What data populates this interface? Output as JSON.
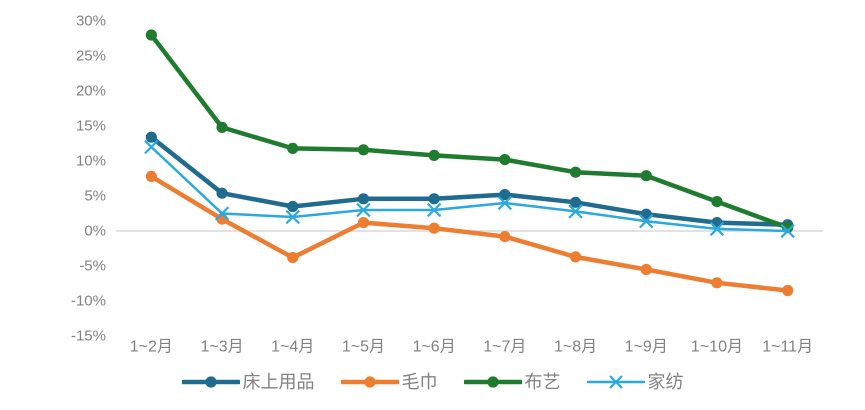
{
  "chart_data": {
    "type": "line",
    "title": "",
    "xlabel": "",
    "ylabel": "",
    "categories": [
      "1~2月",
      "1~3月",
      "1~4月",
      "1~5月",
      "1~6月",
      "1~7月",
      "1~8月",
      "1~9月",
      "1~10月",
      "1~11月"
    ],
    "series": [
      {
        "name": "床上用品",
        "color": "#1F6C8E",
        "marker": "circle",
        "line_width": 4.5,
        "values": [
          13.4,
          5.4,
          3.5,
          4.6,
          4.6,
          5.2,
          4.1,
          2.4,
          1.2,
          0.9
        ]
      },
      {
        "name": "毛巾",
        "color": "#ED7D31",
        "marker": "circle",
        "line_width": 4.5,
        "values": [
          7.8,
          1.7,
          -3.8,
          1.2,
          0.4,
          -0.8,
          -3.7,
          -5.5,
          -7.4,
          -8.5
        ]
      },
      {
        "name": "布艺",
        "color": "#1F7B2D",
        "marker": "circle",
        "line_width": 4.5,
        "values": [
          28.0,
          14.8,
          11.8,
          11.6,
          10.8,
          10.2,
          8.4,
          7.9,
          4.2,
          0.5
        ]
      },
      {
        "name": "家纺",
        "color": "#29A9E0",
        "marker": "x",
        "line_width": 2.5,
        "values": [
          12.0,
          2.5,
          2.0,
          3.0,
          3.0,
          4.0,
          2.8,
          1.4,
          0.3,
          0.0
        ]
      }
    ],
    "ylim": [
      -15,
      30
    ],
    "y_tick_step": 5,
    "y_tick_suffix": "%",
    "grid": "zero-line-only",
    "legend_position": "bottom",
    "axis_text_color": "#828282",
    "zero_line_color": "#D9D9D9",
    "background": "#FFFFFF"
  }
}
